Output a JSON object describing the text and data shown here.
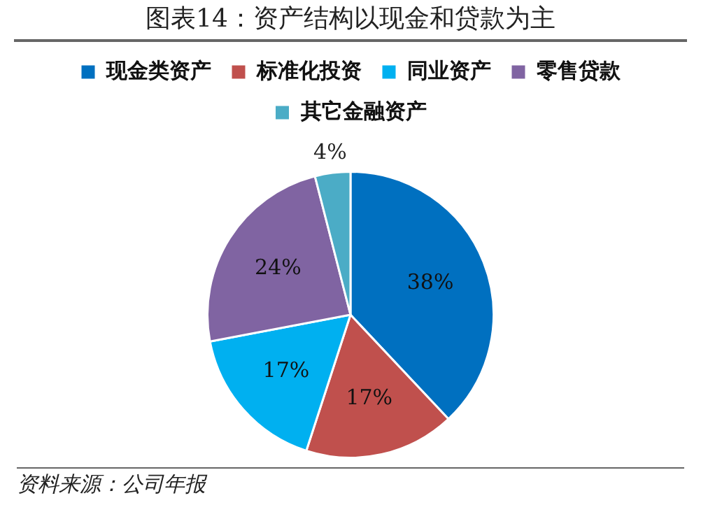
{
  "chart_data": {
    "type": "pie",
    "title": "图表14：资产结构以现金和贷款为主",
    "categories": [
      "现金类资产",
      "标准化投资",
      "同业资产",
      "零售贷款",
      "其它金融资产"
    ],
    "values": [
      38,
      17,
      17,
      24,
      4
    ],
    "value_labels": [
      "38%",
      "17%",
      "17%",
      "24%",
      "4%"
    ],
    "colors": [
      "#0070c0",
      "#c0504d",
      "#00b0f0",
      "#8064a2",
      "#4bacc6"
    ],
    "legend": "top",
    "annotations": [
      "资料来源：公司年报"
    ]
  }
}
